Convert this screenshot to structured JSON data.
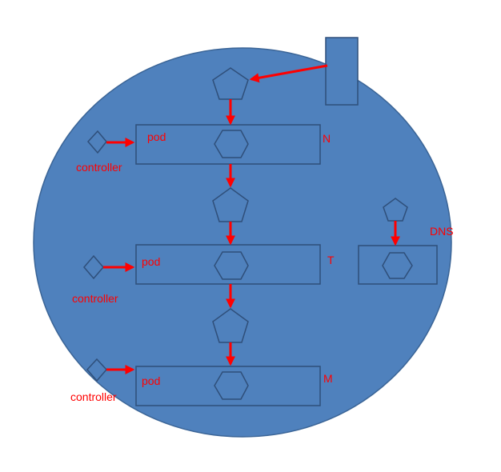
{
  "colors": {
    "background": "#ffffff",
    "cluster_fill": "#4f81bd",
    "stroke": "#2f4f7a",
    "arrow": "#ff0000",
    "label": "#ff0000"
  },
  "labels": {
    "pod": "pod",
    "controller": "controller",
    "node_n": "N",
    "node_t": "T",
    "node_m": "M",
    "dns": "DNS"
  },
  "icons": {
    "service": "pentagon-icon",
    "container": "hexagon-icon",
    "controller": "diamond-icon"
  }
}
